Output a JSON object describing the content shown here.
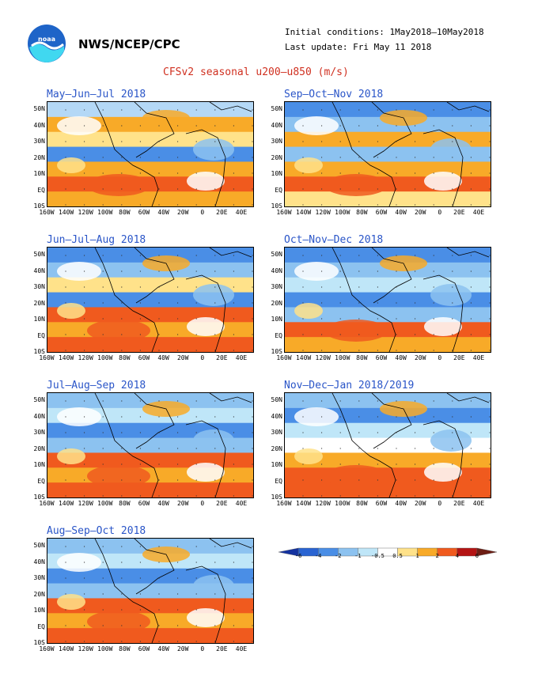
{
  "header": {
    "org": "NWS/NCEP/CPC",
    "init": "Initial conditions: 1May2018–10May2018",
    "update": "Last update: Fri May 11 2018",
    "title": "CFSv2 seasonal u200–u850 (m/s)"
  },
  "axes": {
    "y_labels": [
      "50N",
      "40N",
      "30N",
      "20N",
      "10N",
      "EQ",
      "10S"
    ],
    "x_labels": [
      "160W",
      "140W",
      "120W",
      "100W",
      "80W",
      "60W",
      "40W",
      "20W",
      "0",
      "20E",
      "40E"
    ]
  },
  "panels": [
    {
      "title": "May–Jun–Jul 2018"
    },
    {
      "title": "Sep–Oct–Nov 2018"
    },
    {
      "title": "Jun–Jul–Aug 2018"
    },
    {
      "title": "Oct–Nov–Dec 2018"
    },
    {
      "title": "Jul–Aug–Sep 2018"
    },
    {
      "title": "Nov–Dec–Jan 2018/2019"
    },
    {
      "title": "Aug–Sep–Oct 2018"
    }
  ],
  "colorbar": {
    "labels": [
      "-6",
      "-4",
      "-2",
      "-1",
      "-0.5",
      "0.5",
      "1",
      "2",
      "4",
      "6"
    ],
    "colors": [
      "#1432a0",
      "#2a64d2",
      "#4a8ee6",
      "#8cc2f0",
      "#bfe6f8",
      "#ffffff",
      "#ffe28a",
      "#f8aa28",
      "#f05a1e",
      "#b41414",
      "#6e1e14"
    ]
  }
}
